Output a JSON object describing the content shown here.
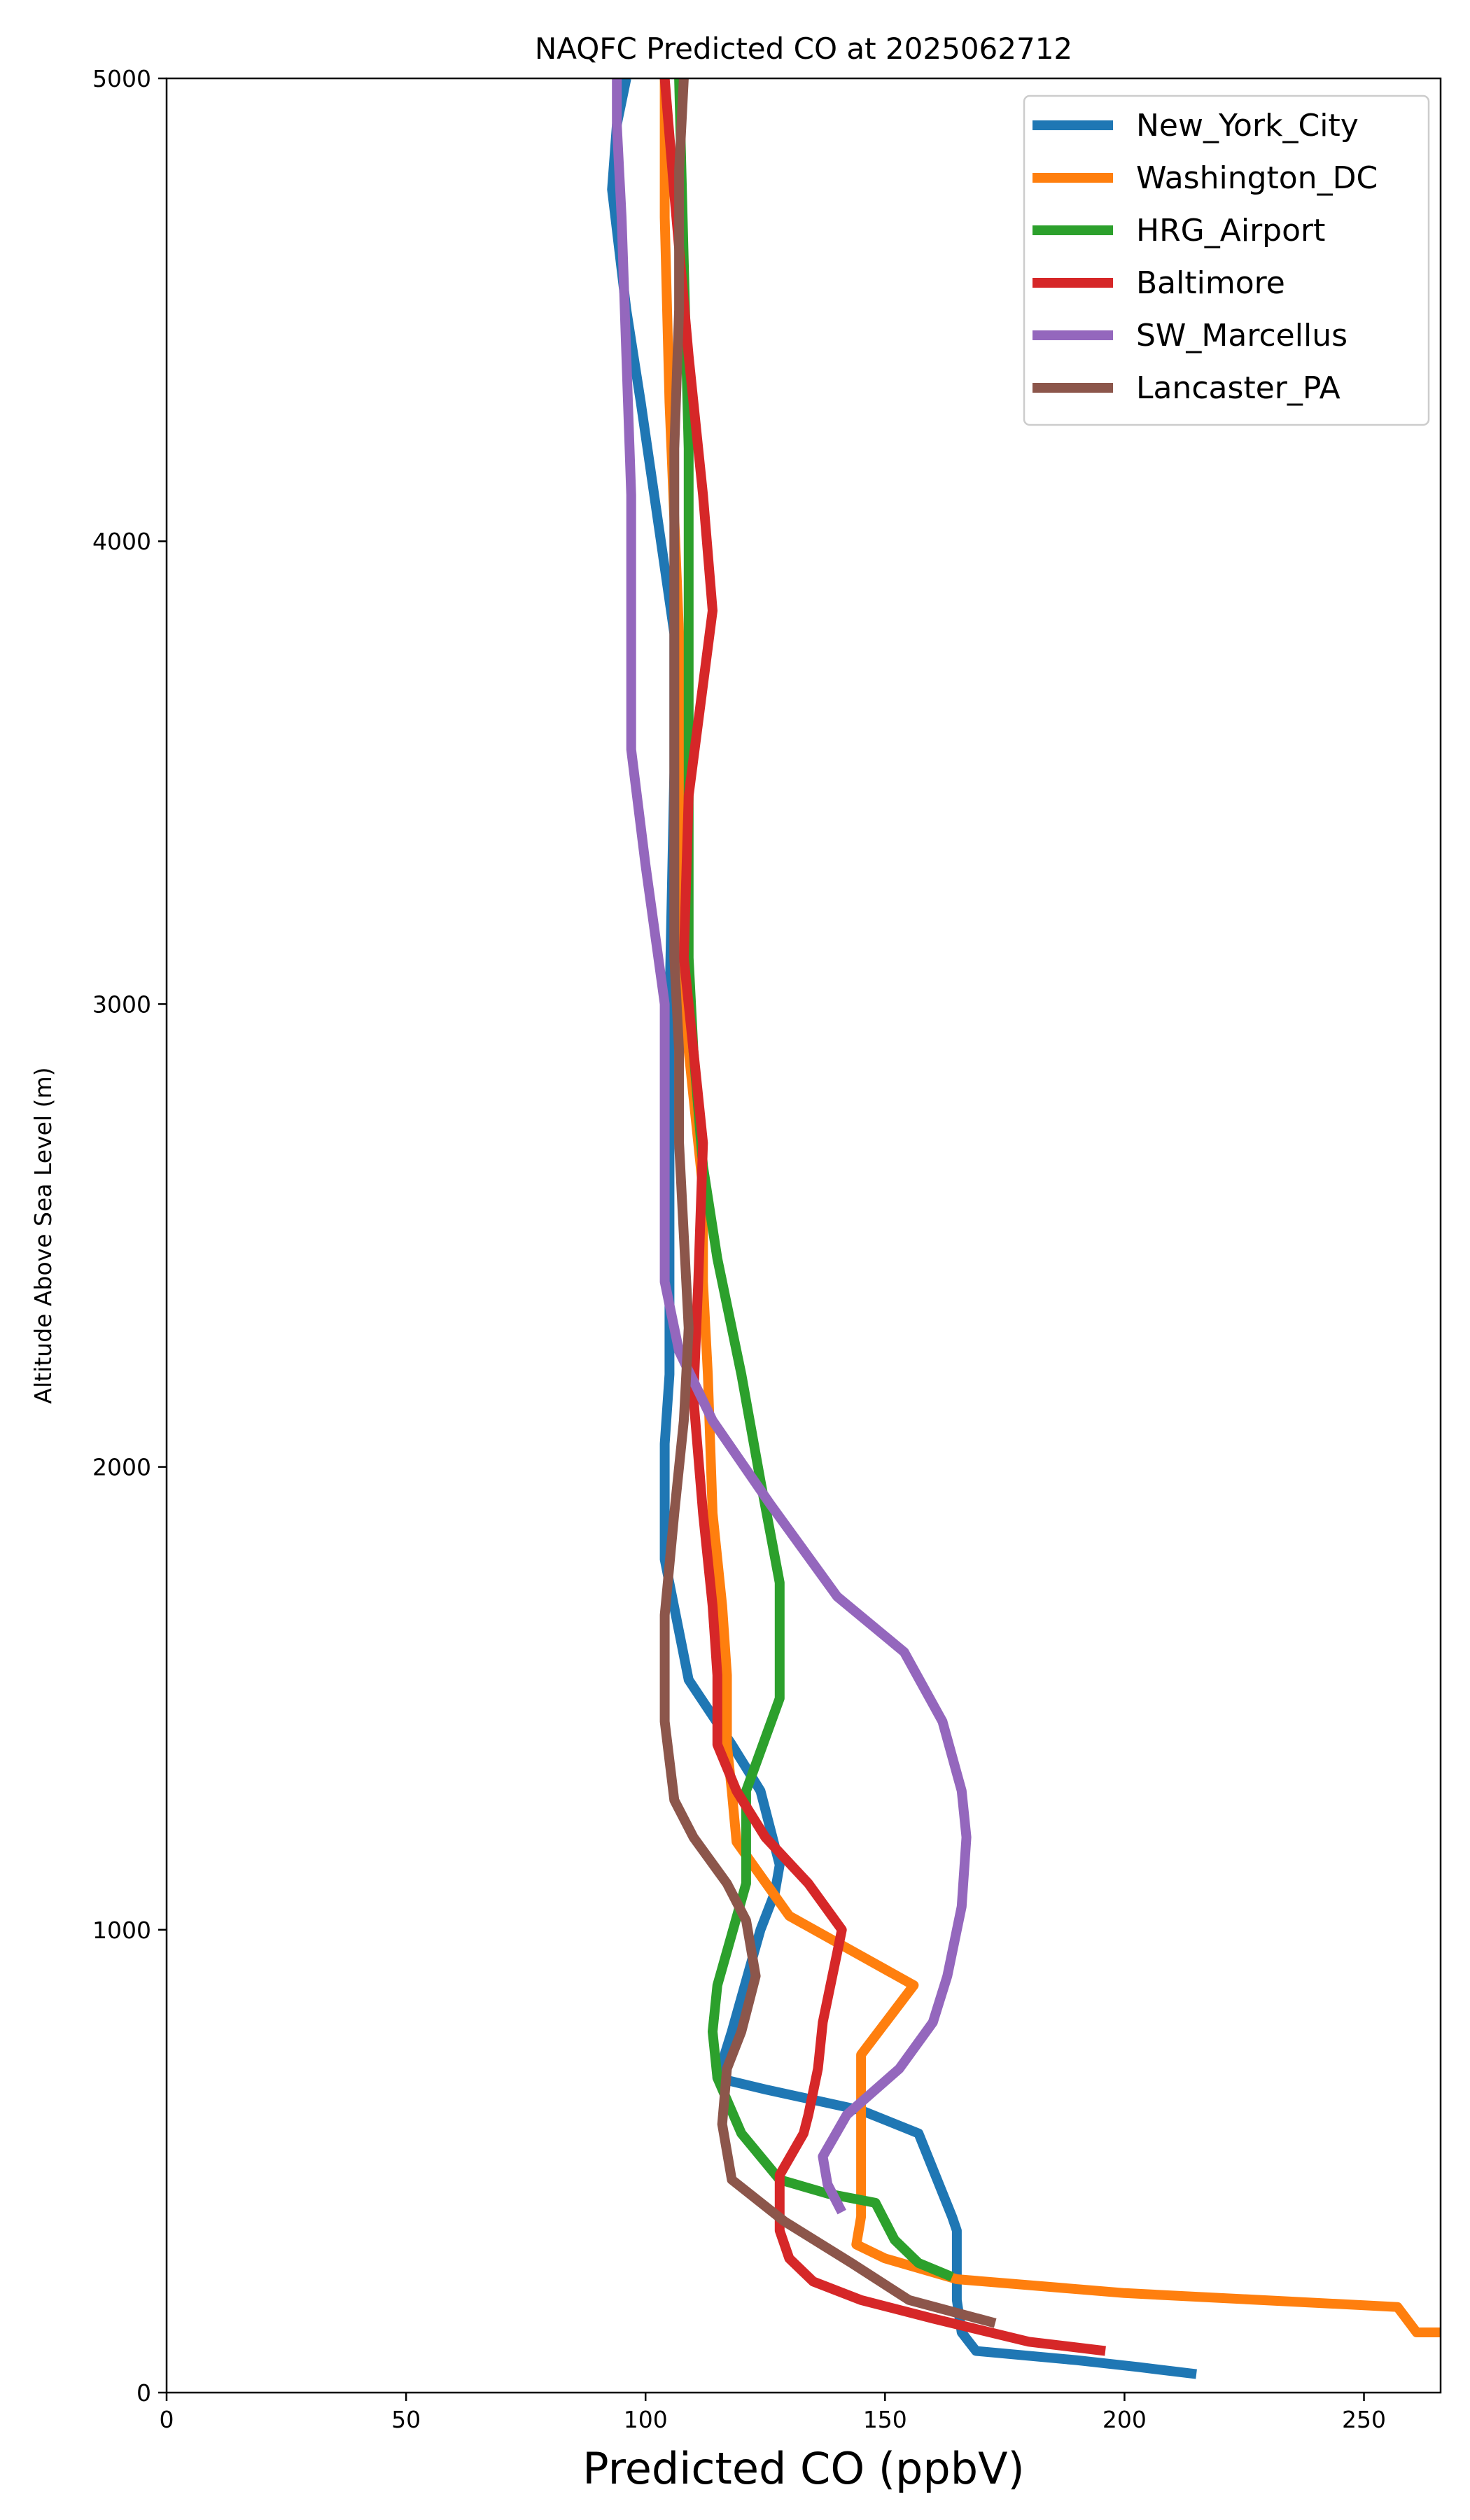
{
  "chart_data": {
    "type": "line",
    "title": "NAQFC Predicted CO at 2025062712",
    "xlabel": "Predicted CO (ppbV)",
    "ylabel": "Altitude Above Sea Level (m)",
    "xlim": [
      0,
      266
    ],
    "ylim": [
      0,
      5000
    ],
    "xticks": [
      "0",
      "50",
      "100",
      "150",
      "200",
      "250"
    ],
    "yticks": [
      "0",
      "1000",
      "2000",
      "3000",
      "4000",
      "5000"
    ],
    "grid": false,
    "legend_position": "top-right",
    "series": [
      {
        "name": "New_York_City",
        "color": "#1f77b4",
        "points": [
          [
            215,
            40
          ],
          [
            203,
            55
          ],
          [
            190,
            70
          ],
          [
            169,
            90
          ],
          [
            166,
            130
          ],
          [
            165,
            200
          ],
          [
            165,
            350
          ],
          [
            164,
            380
          ],
          [
            157,
            560
          ],
          [
            145,
            610
          ],
          [
            125,
            655
          ],
          [
            115,
            680
          ],
          [
            118,
            780
          ],
          [
            121,
            890
          ],
          [
            124,
            1000
          ],
          [
            127,
            1080
          ],
          [
            128,
            1140
          ],
          [
            124,
            1300
          ],
          [
            118,
            1400
          ],
          [
            109,
            1540
          ],
          [
            104,
            1800
          ],
          [
            104,
            2050
          ],
          [
            105,
            2200
          ],
          [
            105,
            2400
          ],
          [
            105,
            2600
          ],
          [
            105,
            3000
          ],
          [
            106,
            3500
          ],
          [
            106,
            3800
          ],
          [
            99,
            4300
          ],
          [
            96,
            4500
          ],
          [
            93,
            4760
          ],
          [
            94,
            4900
          ],
          [
            96,
            5000
          ]
        ]
      },
      {
        "name": "Washington_DC",
        "color": "#ff7f0e",
        "points": [
          [
            266,
            130
          ],
          [
            261,
            130
          ],
          [
            257,
            185
          ],
          [
            200,
            215
          ],
          [
            165,
            245
          ],
          [
            150,
            290
          ],
          [
            144,
            320
          ],
          [
            145,
            380
          ],
          [
            145,
            500
          ],
          [
            145,
            620
          ],
          [
            145,
            730
          ],
          [
            156,
            880
          ],
          [
            130,
            1030
          ],
          [
            119,
            1190
          ],
          [
            118,
            1300
          ],
          [
            117,
            1400
          ],
          [
            117,
            1550
          ],
          [
            116,
            1700
          ],
          [
            114,
            1900
          ],
          [
            113,
            2200
          ],
          [
            112,
            2400
          ],
          [
            112,
            2600
          ],
          [
            110,
            2800
          ],
          [
            108,
            3000
          ],
          [
            108,
            3500
          ],
          [
            107,
            3800
          ],
          [
            105,
            4300
          ],
          [
            104,
            4700
          ],
          [
            104,
            5000
          ]
        ]
      },
      {
        "name": "HRG_Airport",
        "color": "#2ca02c",
        "points": [
          [
            164,
            250
          ],
          [
            157,
            280
          ],
          [
            152,
            330
          ],
          [
            148,
            410
          ],
          [
            138,
            430
          ],
          [
            128,
            460
          ],
          [
            120,
            560
          ],
          [
            115,
            680
          ],
          [
            114,
            780
          ],
          [
            115,
            880
          ],
          [
            118,
            990
          ],
          [
            121,
            1100
          ],
          [
            121,
            1300
          ],
          [
            128,
            1500
          ],
          [
            128,
            1750
          ],
          [
            124,
            1970
          ],
          [
            120,
            2200
          ],
          [
            115,
            2450
          ],
          [
            112,
            2650
          ],
          [
            110,
            2900
          ],
          [
            109,
            3100
          ],
          [
            109,
            3500
          ],
          [
            109,
            3900
          ],
          [
            109,
            4200
          ],
          [
            108,
            4600
          ],
          [
            107,
            5000
          ]
        ]
      },
      {
        "name": "Baltimore",
        "color": "#d62728",
        "points": [
          [
            196,
            90
          ],
          [
            180,
            110
          ],
          [
            160,
            160
          ],
          [
            145,
            200
          ],
          [
            135,
            240
          ],
          [
            130,
            290
          ],
          [
            128,
            350
          ],
          [
            128,
            470
          ],
          [
            133,
            560
          ],
          [
            134,
            600
          ],
          [
            136,
            700
          ],
          [
            137,
            800
          ],
          [
            140,
            950
          ],
          [
            141,
            1000
          ],
          [
            134,
            1100
          ],
          [
            125,
            1200
          ],
          [
            119,
            1300
          ],
          [
            115,
            1400
          ],
          [
            115,
            1550
          ],
          [
            114,
            1700
          ],
          [
            112,
            1900
          ],
          [
            110,
            2150
          ],
          [
            111,
            2400
          ],
          [
            112,
            2700
          ],
          [
            108,
            3100
          ],
          [
            109,
            3450
          ],
          [
            114,
            3850
          ],
          [
            112,
            4100
          ],
          [
            109,
            4400
          ],
          [
            106,
            4750
          ],
          [
            104,
            5000
          ]
        ]
      },
      {
        "name": "SW_Marcellus",
        "color": "#9467bd",
        "points": [
          [
            141,
            390
          ],
          [
            138,
            450
          ],
          [
            137,
            510
          ],
          [
            142,
            600
          ],
          [
            153,
            700
          ],
          [
            160,
            800
          ],
          [
            163,
            900
          ],
          [
            166,
            1050
          ],
          [
            167,
            1200
          ],
          [
            166,
            1300
          ],
          [
            162,
            1450
          ],
          [
            154,
            1600
          ],
          [
            140,
            1720
          ],
          [
            126,
            1920
          ],
          [
            114,
            2100
          ],
          [
            107,
            2250
          ],
          [
            104,
            2400
          ],
          [
            104,
            2600
          ],
          [
            104,
            2800
          ],
          [
            104,
            3000
          ],
          [
            100,
            3300
          ],
          [
            97,
            3550
          ],
          [
            97,
            3800
          ],
          [
            97,
            4100
          ],
          [
            96,
            4400
          ],
          [
            95,
            4700
          ],
          [
            94,
            4900
          ],
          [
            94,
            5000
          ]
        ]
      },
      {
        "name": "Lancaster_PA",
        "color": "#8c564b",
        "points": [
          [
            173,
            150
          ],
          [
            155,
            200
          ],
          [
            143,
            280
          ],
          [
            129,
            370
          ],
          [
            118,
            460
          ],
          [
            116,
            580
          ],
          [
            117,
            700
          ],
          [
            120,
            780
          ],
          [
            123,
            900
          ],
          [
            121,
            1020
          ],
          [
            117,
            1100
          ],
          [
            110,
            1200
          ],
          [
            106,
            1280
          ],
          [
            104,
            1450
          ],
          [
            104,
            1680
          ],
          [
            106,
            1900
          ],
          [
            108,
            2100
          ],
          [
            109,
            2300
          ],
          [
            108,
            2500
          ],
          [
            107,
            2700
          ],
          [
            107,
            2900
          ],
          [
            106,
            3100
          ],
          [
            106,
            3400
          ],
          [
            106,
            3650
          ],
          [
            106,
            3900
          ],
          [
            106,
            4200
          ],
          [
            107,
            4500
          ],
          [
            107,
            4800
          ],
          [
            108,
            5000
          ]
        ]
      }
    ]
  }
}
